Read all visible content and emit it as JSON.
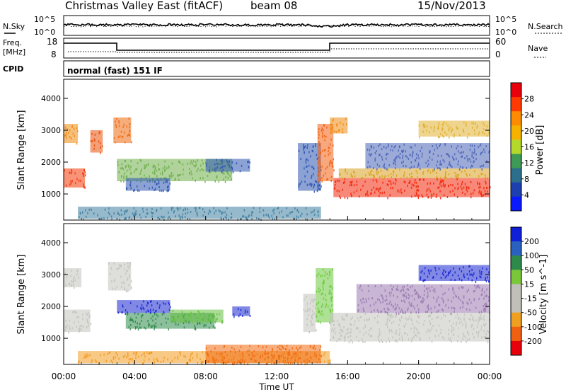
{
  "header": {
    "title": "Christmas Valley East (fitACF)",
    "beam": "beam 08",
    "date": "15/Nov/2013"
  },
  "top_panels": {
    "nsky_label": "N.Sky",
    "nsearch_label": "N.Search",
    "nsky_ticks": [
      "10^5",
      "10^0"
    ],
    "nsearch_ticks": [
      "10^5",
      "10^0"
    ],
    "freq_label": "Freq.",
    "freq_unit": "[MHz]",
    "freq_ticks": [
      "18",
      "8"
    ],
    "nave_label": "Nave",
    "nave_ticks": [
      "60",
      "0"
    ],
    "cpid_label": "CPID",
    "cpid_text": "normal (fast) 151 IF"
  },
  "chart_data": [
    {
      "type": "heatmap",
      "name": "power-panel",
      "ylabel": "Slant Range [km]",
      "y_ticks": [
        "4000",
        "3000",
        "2000",
        "1000"
      ],
      "ylim": [
        180,
        4600
      ],
      "xlim": [
        0,
        24
      ],
      "colorbar": {
        "label": "Power [dB]",
        "ticks": [
          "28",
          "24",
          "20",
          "16",
          "12",
          "8",
          "4"
        ],
        "colors": [
          "#e8000b",
          "#ff3a00",
          "#ff8c00",
          "#f5b300",
          "#b5d92a",
          "#3f9a55",
          "#2b6f8c",
          "#1d3fb0",
          "#0a1aff"
        ]
      },
      "regions": [
        {
          "t0": 0.0,
          "t1": 1.2,
          "r0": 1200,
          "r1": 1800,
          "color": "#f23a0a"
        },
        {
          "t0": 0.0,
          "t1": 0.8,
          "r0": 2600,
          "r1": 3200,
          "color": "#f08a10"
        },
        {
          "t0": 1.5,
          "t1": 2.2,
          "r0": 2300,
          "r1": 3000,
          "color": "#e9500a"
        },
        {
          "t0": 2.8,
          "t1": 3.8,
          "r0": 2600,
          "r1": 3400,
          "color": "#ef6a10"
        },
        {
          "t0": 3.0,
          "t1": 9.5,
          "r0": 1400,
          "r1": 2100,
          "color": "#6fae4a"
        },
        {
          "t0": 3.5,
          "t1": 6.0,
          "r0": 1100,
          "r1": 1500,
          "color": "#2d55b0"
        },
        {
          "t0": 8.0,
          "t1": 10.5,
          "r0": 1700,
          "r1": 2100,
          "color": "#2d55b0"
        },
        {
          "t0": 0.8,
          "t1": 14.5,
          "r0": 220,
          "r1": 600,
          "color": "#3f7fa0"
        },
        {
          "t0": 13.2,
          "t1": 14.5,
          "r0": 1100,
          "r1": 2600,
          "color": "#2d55b0"
        },
        {
          "t0": 14.3,
          "t1": 15.2,
          "r0": 1400,
          "r1": 3200,
          "color": "#f26010"
        },
        {
          "t0": 15.0,
          "t1": 16.0,
          "r0": 2900,
          "r1": 3400,
          "color": "#f08a10"
        },
        {
          "t0": 15.2,
          "t1": 24.0,
          "r0": 900,
          "r1": 1500,
          "color": "#f2260a"
        },
        {
          "t0": 15.5,
          "t1": 24.0,
          "r0": 1500,
          "r1": 1800,
          "color": "#d9a020"
        },
        {
          "t0": 17.0,
          "t1": 24.0,
          "r0": 1800,
          "r1": 2600,
          "color": "#4a64b8"
        },
        {
          "t0": 20.0,
          "t1": 24.0,
          "r0": 2800,
          "r1": 3300,
          "color": "#e0b030"
        }
      ]
    },
    {
      "type": "heatmap",
      "name": "velocity-panel",
      "ylabel": "Slant Range [km]",
      "y_ticks": [
        "4000",
        "3000",
        "2000",
        "1000"
      ],
      "ylim": [
        180,
        4600
      ],
      "xlim": [
        0,
        24
      ],
      "x_ticks": [
        "00:00",
        "04:00",
        "08:00",
        "12:00",
        "16:00",
        "20:00",
        "00:00"
      ],
      "xlabel": "Time UT",
      "colorbar": {
        "label": "Velocity [m s^-1]",
        "ticks": [
          "200",
          "100",
          "50",
          "15",
          "-15",
          "-50",
          "-100",
          "-200"
        ],
        "colors": [
          "#1020d8",
          "#2a60c0",
          "#2e8a4a",
          "#7ac83a",
          "#c0c0b8",
          "#c0c0b8",
          "#f0a020",
          "#f06010",
          "#e8000b"
        ]
      },
      "regions": [
        {
          "t0": 0.0,
          "t1": 1.5,
          "r0": 1200,
          "r1": 1900,
          "color": "#c3c3bd"
        },
        {
          "t0": 0.0,
          "t1": 1.0,
          "r0": 2600,
          "r1": 3200,
          "color": "#c3c3bd"
        },
        {
          "t0": 2.5,
          "t1": 3.8,
          "r0": 2500,
          "r1": 3400,
          "color": "#c3c3bd"
        },
        {
          "t0": 3.0,
          "t1": 6.0,
          "r0": 1800,
          "r1": 2200,
          "color": "#1a28d0"
        },
        {
          "t0": 3.5,
          "t1": 8.5,
          "r0": 1300,
          "r1": 1800,
          "color": "#2e8a4a"
        },
        {
          "t0": 6.0,
          "t1": 9.0,
          "r0": 1500,
          "r1": 1900,
          "color": "#66c040"
        },
        {
          "t0": 9.5,
          "t1": 10.5,
          "r0": 1700,
          "r1": 2000,
          "color": "#1a28d0"
        },
        {
          "t0": 0.8,
          "t1": 15.0,
          "r0": 220,
          "r1": 600,
          "color": "#f29a20"
        },
        {
          "t0": 8.0,
          "t1": 14.5,
          "r0": 220,
          "r1": 800,
          "color": "#f06a10"
        },
        {
          "t0": 13.5,
          "t1": 14.2,
          "r0": 1200,
          "r1": 2400,
          "color": "#c3c3bd"
        },
        {
          "t0": 14.2,
          "t1": 15.2,
          "r0": 1500,
          "r1": 3200,
          "color": "#6ac83a"
        },
        {
          "t0": 15.0,
          "t1": 24.0,
          "r0": 900,
          "r1": 1800,
          "color": "#c3c3bd"
        },
        {
          "t0": 16.5,
          "t1": 24.0,
          "r0": 1800,
          "r1": 2700,
          "color": "#9a7ab0"
        },
        {
          "t0": 20.0,
          "t1": 24.0,
          "r0": 2800,
          "r1": 3300,
          "color": "#1a28d0"
        }
      ]
    }
  ]
}
